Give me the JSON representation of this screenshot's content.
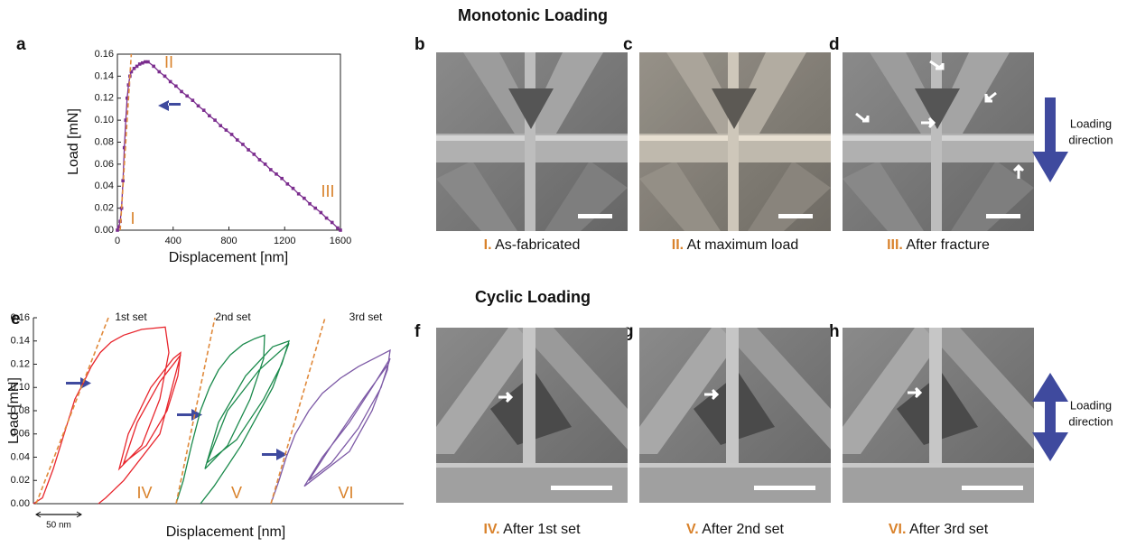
{
  "headings": [
    "Monotonic Loading",
    "Cyclic Loading"
  ],
  "panel_letters": [
    "a",
    "b",
    "c",
    "d",
    "e",
    "f",
    "g",
    "h"
  ],
  "captions": [
    {
      "numeral": "I.",
      "text": "As-fabricated"
    },
    {
      "numeral": "II.",
      "text": "At maximum load"
    },
    {
      "numeral": "III.",
      "text": "After fracture"
    },
    {
      "numeral": "IV.",
      "text": "After 1st set"
    },
    {
      "numeral": "V.",
      "text": "After 2nd set"
    },
    {
      "numeral": "VI.",
      "text": "After 3rd set"
    }
  ],
  "side_labels": [
    {
      "lines": [
        "Loading",
        "direction"
      ]
    },
    {
      "lines": [
        "Loading",
        "direction"
      ]
    }
  ],
  "chart_data": [
    {
      "type": "line",
      "xlabel": "Displacement [nm]",
      "ylabel": "Load [mN]",
      "color": "#7b2d8e",
      "markers": true,
      "x": [
        0,
        10,
        20,
        30,
        40,
        50,
        60,
        70,
        80,
        90,
        100,
        120,
        140,
        160,
        180,
        200,
        220,
        260,
        300,
        340,
        380,
        420,
        460,
        500,
        540,
        580,
        620,
        660,
        700,
        740,
        780,
        820,
        860,
        900,
        940,
        980,
        1020,
        1060,
        1100,
        1140,
        1180,
        1220,
        1260,
        1300,
        1340,
        1380,
        1420,
        1460,
        1500,
        1540,
        1580,
        1600
      ],
      "values": [
        0,
        0.003,
        0.008,
        0.02,
        0.045,
        0.075,
        0.1,
        0.12,
        0.132,
        0.14,
        0.144,
        0.147,
        0.149,
        0.151,
        0.152,
        0.153,
        0.153,
        0.149,
        0.144,
        0.14,
        0.135,
        0.131,
        0.126,
        0.122,
        0.118,
        0.113,
        0.109,
        0.104,
        0.1,
        0.095,
        0.091,
        0.087,
        0.082,
        0.078,
        0.073,
        0.069,
        0.064,
        0.06,
        0.055,
        0.051,
        0.047,
        0.042,
        0.038,
        0.033,
        0.029,
        0.024,
        0.02,
        0.016,
        0.011,
        0.007,
        0.002,
        0
      ],
      "guides": [
        {
          "color": "#e08a3c",
          "x": [
            20,
            100
          ],
          "values": [
            0,
            0.16
          ]
        }
      ],
      "annotations": [
        "I",
        "II",
        "III"
      ],
      "xlim": [
        0,
        1600
      ],
      "xticks": [
        0,
        400,
        800,
        1200,
        1600
      ],
      "ylim": [
        0,
        0.16
      ],
      "yticks": [
        {
          "value": 0,
          "label": "0.00"
        },
        0.02,
        0.04,
        0.06,
        0.08,
        {
          "value": 0.1,
          "label": "0.10"
        },
        0.12,
        0.14,
        0.16
      ]
    },
    {
      "type": "line",
      "xlabel": "Displacement [nm]",
      "ylabel": "Load [mN]",
      "series": [
        {
          "name": "1st set",
          "color": "#e8262d",
          "x": [
            0,
            10,
            22,
            34,
            46,
            56,
            64,
            74,
            86,
            100,
            120,
            146,
            150,
            140,
            120,
            95,
            105,
            130,
            155,
            163,
            160,
            148,
            125,
            100,
            115,
            140,
            163,
            140,
            100,
            80,
            72
          ],
          "values": [
            0,
            0.005,
            0.03,
            0.06,
            0.09,
            0.105,
            0.118,
            0.13,
            0.139,
            0.145,
            0.15,
            0.152,
            0.13,
            0.09,
            0.05,
            0.03,
            0.06,
            0.1,
            0.125,
            0.13,
            0.11,
            0.08,
            0.05,
            0.035,
            0.07,
            0.105,
            0.128,
            0.06,
            0.02,
            0.005,
            0
          ]
        },
        {
          "name": "2nd set",
          "color": "#1b8a4c",
          "x": [
            158,
            166,
            175,
            185,
            195,
            205,
            218,
            232,
            245,
            256,
            255,
            240,
            215,
            190,
            205,
            235,
            265,
            283,
            275,
            255,
            225,
            192,
            215,
            250,
            283,
            265,
            230,
            200,
            185
          ],
          "values": [
            0,
            0.02,
            0.05,
            0.08,
            0.1,
            0.115,
            0.128,
            0.137,
            0.142,
            0.145,
            0.125,
            0.09,
            0.05,
            0.03,
            0.07,
            0.11,
            0.135,
            0.14,
            0.12,
            0.09,
            0.055,
            0.035,
            0.08,
            0.115,
            0.138,
            0.1,
            0.05,
            0.015,
            0
          ]
        },
        {
          "name": "3rd set",
          "color": "#7d5aa6",
          "x": [
            263,
            272,
            280,
            290,
            305,
            320,
            340,
            360,
            380,
            395,
            392,
            375,
            350,
            300,
            320,
            350,
            375,
            395,
            385,
            360,
            330,
            305,
            330,
            365,
            393
          ],
          "values": [
            0,
            0.02,
            0.04,
            0.06,
            0.08,
            0.095,
            0.108,
            0.118,
            0.126,
            0.132,
            0.115,
            0.08,
            0.045,
            0.015,
            0.04,
            0.07,
            0.1,
            0.125,
            0.1,
            0.065,
            0.035,
            0.02,
            0.05,
            0.09,
            0.12
          ]
        }
      ],
      "guides": [
        {
          "color": "#e08a3c",
          "x": [
            3,
            83
          ],
          "values": [
            0,
            0.16
          ]
        },
        {
          "color": "#e08a3c",
          "x": [
            158,
            201
          ],
          "values": [
            0,
            0.16
          ]
        },
        {
          "color": "#e08a3c",
          "x": [
            263,
            323
          ],
          "values": [
            0,
            0.16
          ]
        }
      ],
      "annotations": [
        "IV",
        "V",
        "VI"
      ],
      "scale_bar": {
        "label": "50 nm",
        "length": 50
      },
      "xlim": [
        0,
        410
      ],
      "ylim": [
        0,
        0.16
      ],
      "yticks": [
        {
          "value": 0,
          "label": "0.00"
        },
        0.02,
        0.04,
        0.06,
        0.08,
        {
          "value": 0.1,
          "label": "0.10"
        },
        0.12,
        0.14,
        0.16
      ]
    }
  ]
}
